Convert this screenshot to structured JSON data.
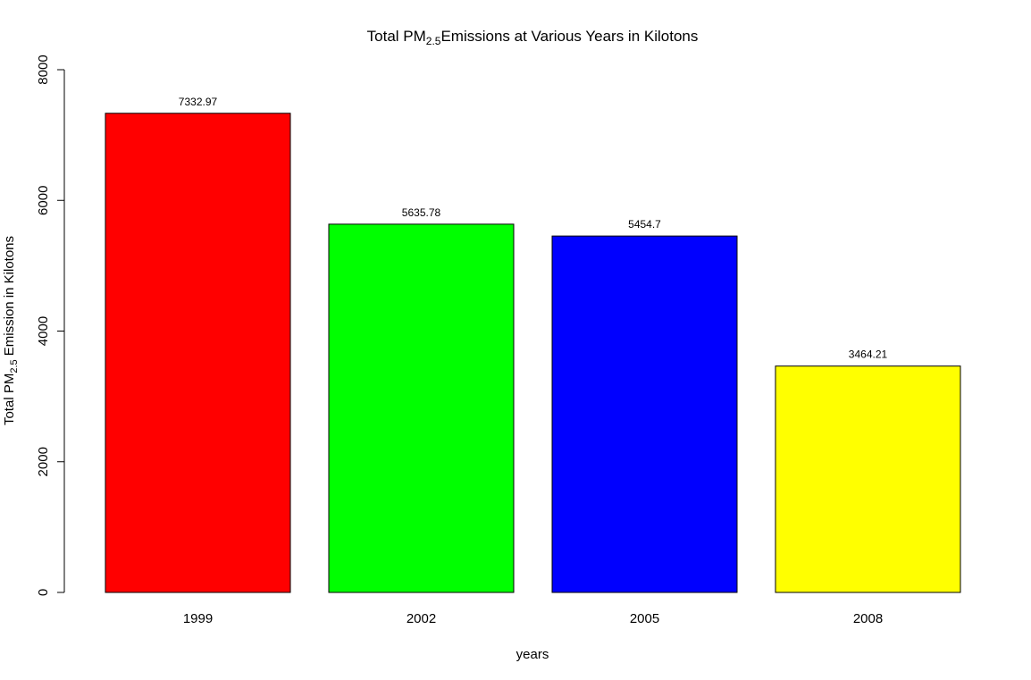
{
  "chart_data": {
    "type": "bar",
    "title": {
      "prefix": "Total PM",
      "subscript": "2.5",
      "suffix": "Emissions at Various Years in Kilotons"
    },
    "xlabel": "years",
    "ylabel": {
      "prefix": "Total PM",
      "subscript": "2.5",
      "suffix": " Emission in Kilotons"
    },
    "categories": [
      "1999",
      "2002",
      "2005",
      "2008"
    ],
    "values": [
      7332.97,
      5635.78,
      5454.7,
      3464.21
    ],
    "data_labels": [
      "7332.97",
      "5635.78",
      "5454.7",
      "3464.21"
    ],
    "colors": [
      "#ff0000",
      "#00ff00",
      "#0000ff",
      "#ffff00"
    ],
    "ylim": [
      0,
      8000
    ],
    "yticks": [
      0,
      2000,
      4000,
      6000,
      8000
    ],
    "grid": false,
    "legend": "none"
  }
}
